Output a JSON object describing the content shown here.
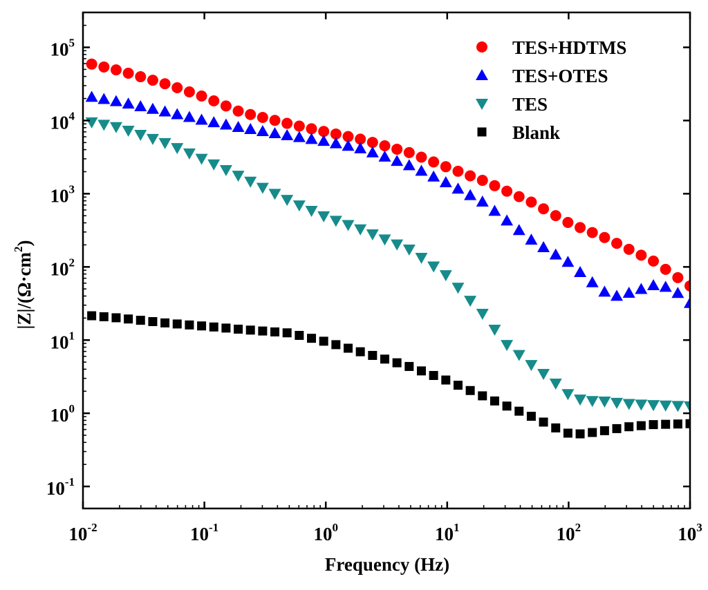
{
  "chart_data": {
    "type": "scatter",
    "xscale": "log",
    "yscale": "log",
    "xlim": [
      0.01,
      1000
    ],
    "ylim": [
      0.05,
      300000
    ],
    "xlabel": "Frequency (Hz)",
    "ylabel": "|Z|/(Ω·cm²)",
    "ylabel_parts": {
      "main": "|Z|/(Ω·cm",
      "sup": "2",
      "close": ")"
    },
    "x_ticks": [
      {
        "value": 0.01,
        "base": "10",
        "exp": "-2"
      },
      {
        "value": 0.1,
        "base": "10",
        "exp": "-1"
      },
      {
        "value": 1,
        "base": "10",
        "exp": "0"
      },
      {
        "value": 10,
        "base": "10",
        "exp": "1"
      },
      {
        "value": 100,
        "base": "10",
        "exp": "2"
      },
      {
        "value": 1000,
        "base": "10",
        "exp": "3"
      }
    ],
    "y_ticks": [
      {
        "value": 0.1,
        "base": "10",
        "exp": "-1"
      },
      {
        "value": 1,
        "base": "10",
        "exp": "0"
      },
      {
        "value": 10,
        "base": "10",
        "exp": "1"
      },
      {
        "value": 100,
        "base": "10",
        "exp": "2"
      },
      {
        "value": 1000,
        "base": "10",
        "exp": "3"
      },
      {
        "value": 10000,
        "base": "10",
        "exp": "4"
      },
      {
        "value": 100000,
        "base": "10",
        "exp": "5"
      }
    ],
    "legend_position": "top-right",
    "series": [
      {
        "name": "TES+HDTMS",
        "marker": "circle",
        "color": "#ff0000",
        "points": [
          [
            0.01,
            63000
          ],
          [
            0.02,
            48000
          ],
          [
            0.05,
            31000
          ],
          [
            0.1,
            21000
          ],
          [
            0.2,
            13000
          ],
          [
            0.5,
            9000
          ],
          [
            1,
            7000
          ],
          [
            2,
            5500
          ],
          [
            5,
            3600
          ],
          [
            10,
            2300
          ],
          [
            20,
            1500
          ],
          [
            50,
            760
          ],
          [
            100,
            400
          ],
          [
            200,
            250
          ],
          [
            500,
            120
          ],
          [
            1000,
            55
          ]
        ]
      },
      {
        "name": "TES+OTES",
        "marker": "triangle-up",
        "color": "#0000ff",
        "points": [
          [
            0.01,
            22000
          ],
          [
            0.02,
            18000
          ],
          [
            0.05,
            13000
          ],
          [
            0.1,
            10000
          ],
          [
            0.2,
            8000
          ],
          [
            0.5,
            6200
          ],
          [
            1,
            5200
          ],
          [
            2,
            4100
          ],
          [
            5,
            2400
          ],
          [
            10,
            1400
          ],
          [
            20,
            760
          ],
          [
            50,
            230
          ],
          [
            100,
            115
          ],
          [
            150,
            65
          ],
          [
            200,
            45
          ],
          [
            250,
            40
          ],
          [
            300,
            43
          ],
          [
            400,
            50
          ],
          [
            500,
            56
          ],
          [
            700,
            52
          ],
          [
            1000,
            32
          ]
        ]
      },
      {
        "name": "TES",
        "marker": "triangle-down",
        "color": "#178b8b",
        "points": [
          [
            0.01,
            10000
          ],
          [
            0.02,
            8000
          ],
          [
            0.05,
            4800
          ],
          [
            0.1,
            2900
          ],
          [
            0.2,
            1700
          ],
          [
            0.5,
            800
          ],
          [
            1,
            480
          ],
          [
            2,
            320
          ],
          [
            5,
            170
          ],
          [
            10,
            75
          ],
          [
            20,
            22
          ],
          [
            30,
            9
          ],
          [
            50,
            4.5
          ],
          [
            70,
            3
          ],
          [
            100,
            1.8
          ],
          [
            130,
            1.5
          ],
          [
            200,
            1.45
          ],
          [
            300,
            1.35
          ],
          [
            500,
            1.3
          ],
          [
            1000,
            1.25
          ]
        ]
      },
      {
        "name": "Blank",
        "marker": "square",
        "color": "#000000",
        "points": [
          [
            0.01,
            22
          ],
          [
            0.02,
            20
          ],
          [
            0.05,
            17
          ],
          [
            0.1,
            15.5
          ],
          [
            0.2,
            14
          ],
          [
            0.5,
            12.5
          ],
          [
            1,
            9.5
          ],
          [
            2,
            6.8
          ],
          [
            5,
            4.3
          ],
          [
            10,
            2.8
          ],
          [
            20,
            1.7
          ],
          [
            50,
            0.9
          ],
          [
            80,
            0.62
          ],
          [
            100,
            0.53
          ],
          [
            120,
            0.52
          ],
          [
            150,
            0.54
          ],
          [
            200,
            0.58
          ],
          [
            300,
            0.65
          ],
          [
            500,
            0.7
          ],
          [
            1000,
            0.72
          ]
        ]
      }
    ]
  }
}
